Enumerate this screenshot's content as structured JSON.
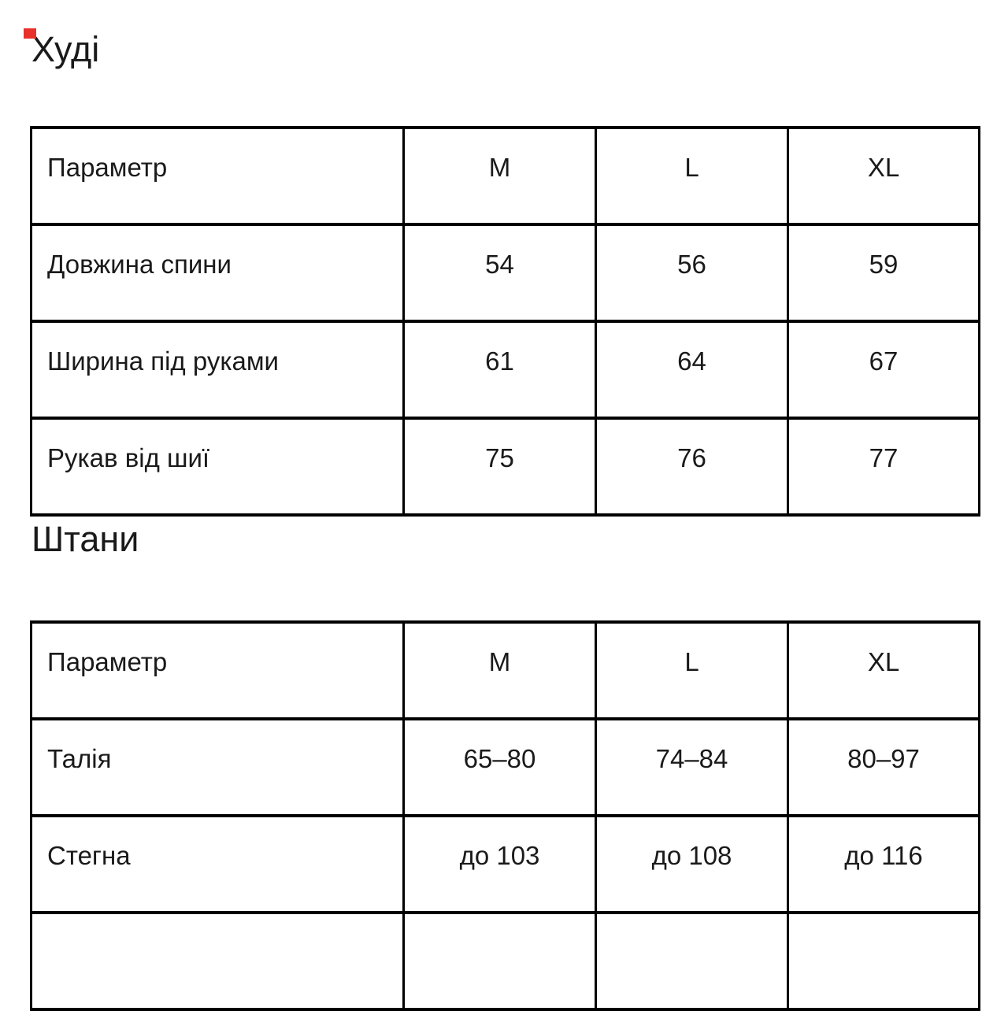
{
  "page": {
    "background": "#ffffff",
    "text_color": "#1a1a1a",
    "border_color": "#000000",
    "marker_color": "#e8312a",
    "marker_style": "background:#e8312a"
  },
  "sections": [
    {
      "title": "Худі",
      "table": {
        "headers": [
          "Параметр",
          "M",
          "L",
          "XL"
        ],
        "rows": [
          [
            "Довжина спини",
            "54",
            "56",
            "59"
          ],
          [
            "Ширина під руками",
            "61",
            "64",
            "67"
          ],
          [
            "Рукав від шиї",
            "75",
            "76",
            "77"
          ]
        ]
      }
    },
    {
      "title": "Штани",
      "table": {
        "headers": [
          "Параметр",
          "M",
          "L",
          "XL"
        ],
        "rows": [
          [
            "Талія",
            "65–80",
            "74–84",
            "80–97"
          ],
          [
            "Стегна",
            "до 103",
            "до 108",
            "до 116"
          ],
          [
            "",
            "",
            "",
            ""
          ]
        ]
      }
    }
  ]
}
